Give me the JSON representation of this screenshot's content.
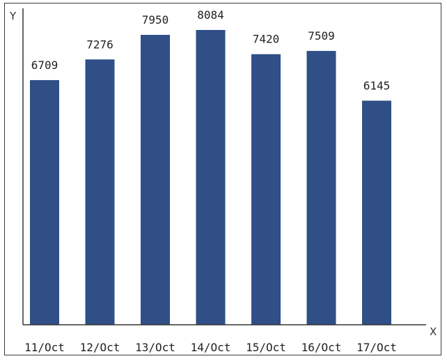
{
  "chart_data": {
    "type": "bar",
    "title": "",
    "xlabel": "X",
    "ylabel": "Y",
    "categories": [
      "11/Oct",
      "12/Oct",
      "13/Oct",
      "14/Oct",
      "15/Oct",
      "16/Oct",
      "17/Oct"
    ],
    "values": [
      6709,
      7276,
      7950,
      8084,
      7420,
      7509,
      6145
    ],
    "ylim": [
      0,
      8500
    ],
    "grid": false,
    "bar_color": "#2f4f86"
  }
}
